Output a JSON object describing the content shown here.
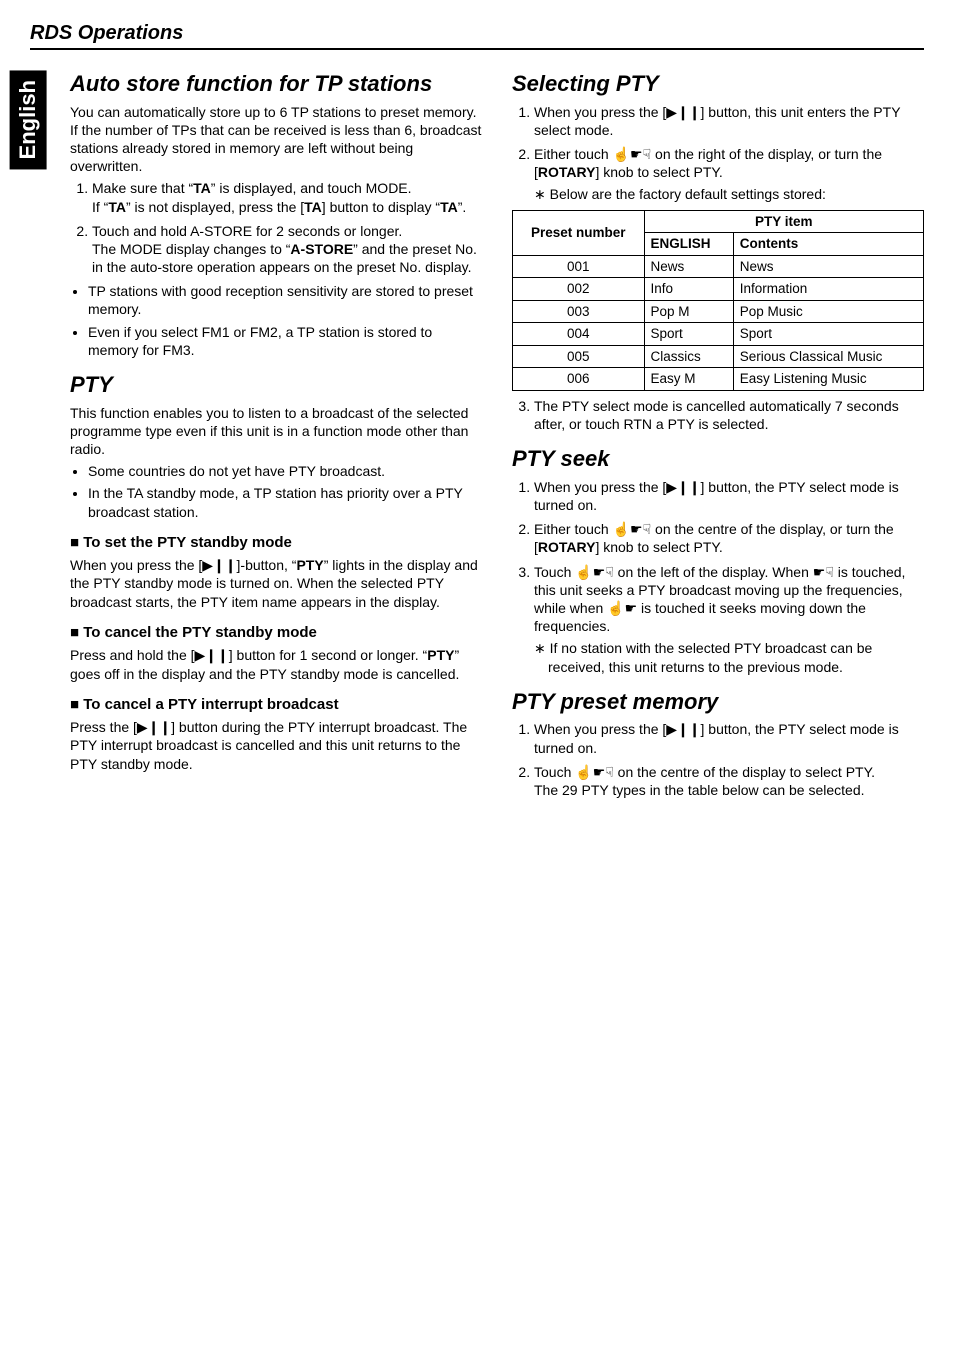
{
  "header": {
    "title": "RDS Operations"
  },
  "sidetab": {
    "label": "English"
  },
  "left": {
    "h_auto": "Auto store function for TP stations",
    "auto_p1": "You can automatically store up to 6 TP stations to preset memory. If the number of TPs that can be received is less than 6, broadcast stations already stored in memory are left without being overwritten.",
    "auto_ol1": "Make sure that “",
    "auto_ol1b": "TA",
    "auto_ol1c": "” is displayed, and touch MODE.",
    "auto_ol1d": "If “",
    "auto_ol1e": "TA",
    "auto_ol1f": "” is not displayed, press the [",
    "auto_ol1g": "TA",
    "auto_ol1h": "] button to display “",
    "auto_ol1i": "TA",
    "auto_ol1j": "”.",
    "auto_ol2a": "Touch and hold A-STORE for 2 seconds or longer.",
    "auto_ol2b": "The MODE display changes to “",
    "auto_ol2c": "A-STORE",
    "auto_ol2d": "” and the preset No. in the auto-store operation appears on the preset No. display.",
    "auto_ul1": "TP stations with good reception sensitivity are stored to preset memory.",
    "auto_ul2": "Even if you select FM1 or FM2, a TP station is stored to memory for FM3.",
    "h_pty": "PTY",
    "pty_p1": "This function enables you to listen to a broadcast of the selected programme type even if this unit is in a function mode other than radio.",
    "pty_ul1": "Some countries do not yet have PTY broadcast.",
    "pty_ul2": "In the TA standby mode, a TP station has priority over a PTY broadcast station.",
    "h_set": "To set the PTY standby mode",
    "set_p1a": "When you press the [",
    "set_p1b": "]-button, “",
    "set_p1c": "PTY",
    "set_p1d": "” lights in the display and the PTY standby mode is turned on. When the selected PTY broadcast starts, the PTY item name appears in the display.",
    "h_cancel": "To cancel the PTY standby mode",
    "cancel_p1a": "Press and hold the [",
    "cancel_p1b": "] button for 1 second or longer. “",
    "cancel_p1c": "PTY",
    "cancel_p1d": "” goes off in the display and the PTY standby mode is cancelled.",
    "h_int": "To cancel a PTY interrupt broadcast",
    "int_p1a": "Press the [",
    "int_p1b": "] button during the PTY interrupt broadcast. The PTY interrupt broadcast is cancelled and this unit returns to the PTY standby mode."
  },
  "right": {
    "h_sel": "Selecting PTY",
    "sel_ol1a": "When you press the [",
    "sel_ol1b": "] button, this unit enters the PTY select mode.",
    "sel_ol2a": "Either touch ",
    "sel_ol2b": " on the right of the display, or turn the [",
    "sel_ol2c": "ROTARY",
    "sel_ol2d": "] knob to select PTY.",
    "sel_star": "Below are the factory default settings stored:",
    "table": {
      "h_preset": "Preset number",
      "h_pty": "PTY item",
      "h_eng": "ENGLISH",
      "h_cont": "Contents",
      "rows": [
        {
          "n": "001",
          "e": "News",
          "c": "News"
        },
        {
          "n": "002",
          "e": "Info",
          "c": "Information"
        },
        {
          "n": "003",
          "e": "Pop M",
          "c": "Pop Music"
        },
        {
          "n": "004",
          "e": "Sport",
          "c": "Sport"
        },
        {
          "n": "005",
          "e": "Classics",
          "c": "Serious Classical Music"
        },
        {
          "n": "006",
          "e": "Easy M",
          "c": "Easy Listening Music"
        }
      ]
    },
    "sel_ol3": "The PTY select mode is cancelled automatically 7 seconds after, or touch RTN a PTY is selected.",
    "h_seek": "PTY seek",
    "seek_ol1a": "When you press the [",
    "seek_ol1b": "] button, the PTY select mode is turned on.",
    "seek_ol2a": "Either touch ",
    "seek_ol2b": " on the centre of the display, or turn the [",
    "seek_ol2c": "ROTARY",
    "seek_ol2d": "] knob to select PTY.",
    "seek_ol3a": "Touch ",
    "seek_ol3b": " on the left of the display. When ",
    "seek_ol3c": " is touched, this unit seeks a PTY broadcast moving up the frequencies, while when ",
    "seek_ol3d": " is touched it seeks moving down the frequencies.",
    "seek_star": "If no station with the selected PTY broadcast can be received, this unit returns to the previous mode.",
    "h_mem": "PTY preset memory",
    "mem_ol1a": "When you press the [",
    "mem_ol1b": "] button, the PTY select mode is turned on.",
    "mem_ol2a": "Touch ",
    "mem_ol2b": " on the centre of the display to select PTY.",
    "mem_ol2c": "The 29 PTY types in the table below can be selected."
  },
  "icons": {
    "play_pause": "▶❙❙",
    "hand_up": "☝",
    "hand_point": "☛",
    "hand_down": "☟"
  }
}
